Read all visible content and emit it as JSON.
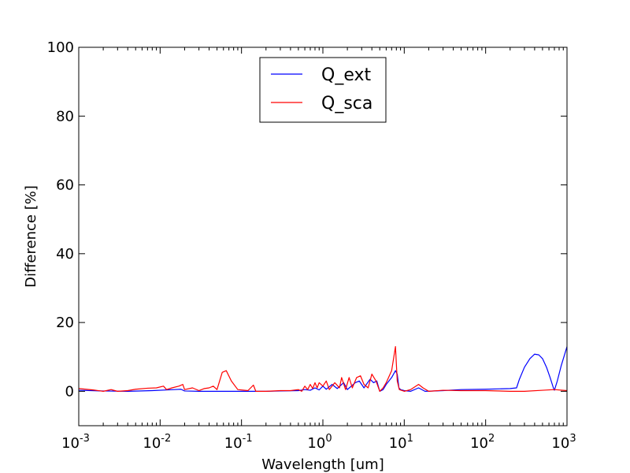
{
  "chart_data": {
    "type": "line",
    "xlabel": "Wavelength [um]",
    "ylabel": "Difference [%]",
    "xscale": "log",
    "xlim": [
      0.001,
      1000
    ],
    "ylim": [
      -10,
      100
    ],
    "x_ticks": [
      {
        "value": 0.001,
        "base": "10",
        "exp": "-3"
      },
      {
        "value": 0.01,
        "base": "10",
        "exp": "-2"
      },
      {
        "value": 0.1,
        "base": "10",
        "exp": "-1"
      },
      {
        "value": 1,
        "base": "10",
        "exp": "0"
      },
      {
        "value": 10,
        "base": "10",
        "exp": "1"
      },
      {
        "value": 100,
        "base": "10",
        "exp": "2"
      },
      {
        "value": 1000,
        "base": "10",
        "exp": "3"
      }
    ],
    "y_ticks": [
      0,
      20,
      40,
      60,
      80,
      100
    ],
    "grid": false,
    "legend_position": "top-center",
    "series": [
      {
        "name": "Q_ext",
        "color": "#0000ff",
        "points": [
          [
            0.001,
            0.3
          ],
          [
            0.002,
            0.1
          ],
          [
            0.004,
            0.0
          ],
          [
            0.008,
            0.2
          ],
          [
            0.015,
            0.5
          ],
          [
            0.018,
            0.6
          ],
          [
            0.02,
            0.1
          ],
          [
            0.03,
            0.0
          ],
          [
            0.05,
            0.0
          ],
          [
            0.1,
            0.0
          ],
          [
            0.2,
            0.0
          ],
          [
            0.3,
            0.1
          ],
          [
            0.5,
            0.2
          ],
          [
            0.6,
            0.5
          ],
          [
            0.7,
            0.3
          ],
          [
            0.8,
            1.0
          ],
          [
            0.9,
            0.4
          ],
          [
            1.0,
            1.5
          ],
          [
            1.1,
            0.6
          ],
          [
            1.3,
            2.0
          ],
          [
            1.5,
            0.8
          ],
          [
            1.8,
            2.5
          ],
          [
            2.0,
            0.5
          ],
          [
            2.5,
            2.5
          ],
          [
            2.8,
            3.0
          ],
          [
            3.2,
            1.0
          ],
          [
            3.8,
            3.5
          ],
          [
            4.2,
            2.5
          ],
          [
            4.6,
            3.0
          ],
          [
            5.0,
            0.0
          ],
          [
            5.5,
            0.5
          ],
          [
            6.0,
            2.0
          ],
          [
            7.0,
            4.0
          ],
          [
            7.8,
            6.0
          ],
          [
            8.2,
            5.0
          ],
          [
            8.6,
            1.0
          ],
          [
            9.0,
            0.5
          ],
          [
            10.0,
            0.2
          ],
          [
            12.0,
            0.0
          ],
          [
            15.0,
            1.0
          ],
          [
            18.0,
            0.0
          ],
          [
            30.0,
            0.2
          ],
          [
            50.0,
            0.5
          ],
          [
            100.0,
            0.6
          ],
          [
            200.0,
            0.8
          ],
          [
            240.0,
            1.0
          ],
          [
            260.0,
            3.5
          ],
          [
            300.0,
            7.0
          ],
          [
            350.0,
            9.5
          ],
          [
            400.0,
            10.8
          ],
          [
            450.0,
            10.6
          ],
          [
            500.0,
            9.5
          ],
          [
            560.0,
            7.0
          ],
          [
            620.0,
            4.0
          ],
          [
            680.0,
            1.0
          ],
          [
            700.0,
            0.3
          ],
          [
            760.0,
            3.0
          ],
          [
            850.0,
            7.5
          ],
          [
            1000.0,
            13.0
          ]
        ]
      },
      {
        "name": "Q_sca",
        "color": "#ff0000",
        "points": [
          [
            0.001,
            0.8
          ],
          [
            0.0015,
            0.4
          ],
          [
            0.002,
            0.0
          ],
          [
            0.0025,
            0.5
          ],
          [
            0.003,
            0.0
          ],
          [
            0.004,
            0.2
          ],
          [
            0.005,
            0.6
          ],
          [
            0.007,
            0.9
          ],
          [
            0.009,
            1.0
          ],
          [
            0.011,
            1.5
          ],
          [
            0.012,
            0.5
          ],
          [
            0.014,
            1.0
          ],
          [
            0.017,
            1.5
          ],
          [
            0.019,
            2.0
          ],
          [
            0.02,
            0.5
          ],
          [
            0.025,
            1.0
          ],
          [
            0.03,
            0.2
          ],
          [
            0.035,
            0.8
          ],
          [
            0.04,
            1.0
          ],
          [
            0.045,
            1.5
          ],
          [
            0.05,
            0.5
          ],
          [
            0.058,
            5.5
          ],
          [
            0.065,
            6.0
          ],
          [
            0.075,
            3.0
          ],
          [
            0.09,
            0.5
          ],
          [
            0.12,
            0.2
          ],
          [
            0.14,
            1.8
          ],
          [
            0.15,
            0.0
          ],
          [
            0.2,
            0.0
          ],
          [
            0.3,
            0.2
          ],
          [
            0.4,
            0.2
          ],
          [
            0.5,
            0.5
          ],
          [
            0.55,
            0.0
          ],
          [
            0.6,
            1.5
          ],
          [
            0.65,
            0.5
          ],
          [
            0.7,
            2.0
          ],
          [
            0.75,
            0.8
          ],
          [
            0.8,
            2.5
          ],
          [
            0.85,
            1.0
          ],
          [
            0.9,
            2.5
          ],
          [
            1.0,
            1.5
          ],
          [
            1.1,
            3.0
          ],
          [
            1.2,
            0.5
          ],
          [
            1.4,
            2.5
          ],
          [
            1.6,
            1.0
          ],
          [
            1.7,
            4.0
          ],
          [
            1.9,
            0.5
          ],
          [
            2.1,
            4.0
          ],
          [
            2.3,
            1.0
          ],
          [
            2.6,
            4.0
          ],
          [
            2.9,
            4.5
          ],
          [
            3.2,
            2.0
          ],
          [
            3.6,
            1.0
          ],
          [
            4.0,
            5.0
          ],
          [
            4.5,
            3.0
          ],
          [
            5.0,
            0.0
          ],
          [
            5.5,
            1.0
          ],
          [
            6.0,
            2.5
          ],
          [
            7.0,
            6.0
          ],
          [
            7.8,
            13.0
          ],
          [
            8.2,
            3.0
          ],
          [
            8.7,
            0.5
          ],
          [
            10.0,
            0.0
          ],
          [
            12.0,
            0.5
          ],
          [
            15.0,
            2.0
          ],
          [
            17.0,
            1.0
          ],
          [
            20.0,
            0.0
          ],
          [
            30.0,
            0.3
          ],
          [
            50.0,
            0.2
          ],
          [
            100.0,
            0.2
          ],
          [
            200.0,
            0.0
          ],
          [
            300.0,
            0.0
          ],
          [
            500.0,
            0.3
          ],
          [
            700.0,
            0.5
          ],
          [
            1000.0,
            0.2
          ]
        ]
      }
    ]
  }
}
